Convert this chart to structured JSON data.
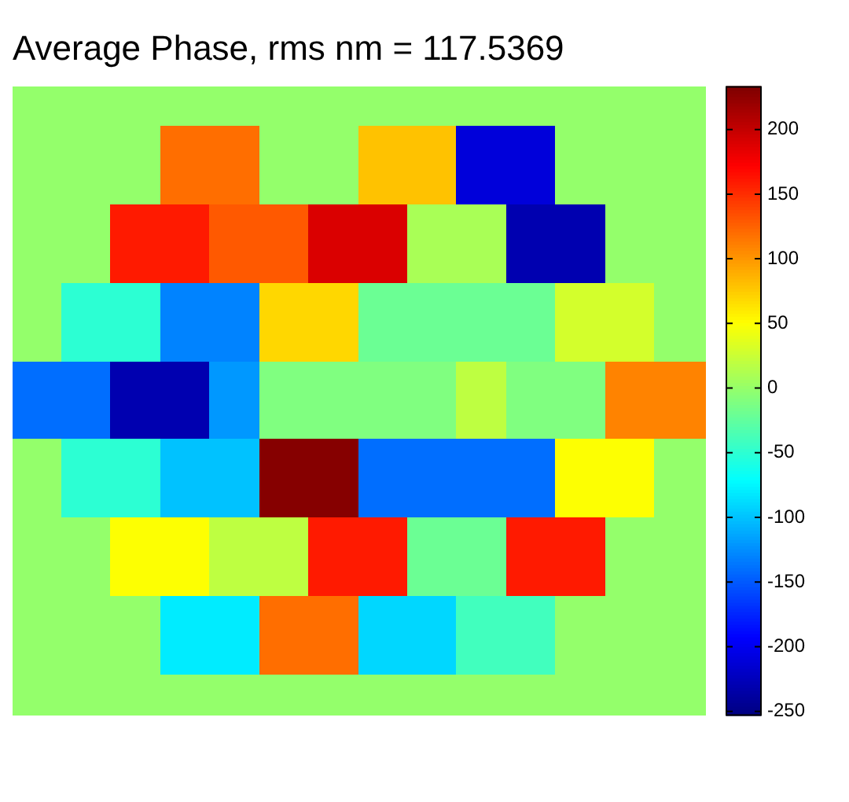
{
  "chart_data": {
    "type": "heatmap",
    "title": "Average Phase, rms nm = 117.5369",
    "categories": [
      null,
      null,
      null,
      null,
      null,
      null,
      null,
      null,
      null,
      null,
      null,
      null,
      null,
      null
    ],
    "y_categories": [
      null,
      null,
      null,
      null,
      null,
      null,
      null,
      null,
      null,
      null,
      null,
      null,
      null,
      null,
      null,
      null
    ],
    "cells": [
      [
        0,
        0,
        0,
        0,
        0,
        0,
        0,
        0,
        0,
        0,
        0,
        0,
        0,
        0
      ],
      [
        0,
        0,
        0,
        120,
        120,
        0,
        0,
        80,
        80,
        -210,
        -210,
        0,
        0,
        0
      ],
      [
        0,
        0,
        0,
        120,
        120,
        0,
        0,
        80,
        80,
        -210,
        -210,
        0,
        0,
        0
      ],
      [
        0,
        0,
        160,
        160,
        130,
        130,
        190,
        190,
        10,
        10,
        -230,
        -230,
        0,
        0
      ],
      [
        0,
        0,
        160,
        160,
        130,
        130,
        190,
        190,
        10,
        10,
        -230,
        -230,
        0,
        0
      ],
      [
        0,
        -50,
        -50,
        -130,
        -130,
        70,
        70,
        -20,
        -20,
        -20,
        -20,
        30,
        30,
        0
      ],
      [
        0,
        -50,
        -50,
        -130,
        -130,
        70,
        70,
        -20,
        -20,
        -20,
        -20,
        30,
        30,
        0
      ],
      [
        -140,
        -140,
        -230,
        -230,
        -120,
        -10,
        -10,
        -10,
        -10,
        20,
        -10,
        -10,
        110,
        110
      ],
      [
        -140,
        -140,
        -230,
        -230,
        -120,
        -10,
        -10,
        -10,
        -10,
        20,
        -10,
        -10,
        110,
        110
      ],
      [
        0,
        -50,
        -50,
        -100,
        -100,
        230,
        230,
        -140,
        -140,
        -140,
        -140,
        50,
        50,
        0
      ],
      [
        0,
        -50,
        -50,
        -100,
        -100,
        230,
        230,
        -140,
        -140,
        -140,
        -140,
        50,
        50,
        0
      ],
      [
        0,
        0,
        50,
        50,
        20,
        20,
        160,
        160,
        -20,
        -20,
        160,
        160,
        0,
        0
      ],
      [
        0,
        0,
        50,
        50,
        20,
        20,
        160,
        160,
        -20,
        -20,
        160,
        160,
        0,
        0
      ],
      [
        0,
        0,
        0,
        -80,
        -80,
        120,
        120,
        -90,
        -90,
        -40,
        -40,
        0,
        0,
        0
      ],
      [
        0,
        0,
        0,
        -80,
        -80,
        120,
        120,
        -90,
        -90,
        -40,
        -40,
        0,
        0,
        0
      ],
      [
        0,
        0,
        0,
        0,
        0,
        0,
        0,
        0,
        0,
        0,
        0,
        0,
        0,
        0
      ]
    ],
    "clim": [
      -253,
      233
    ],
    "cticks": [
      -250,
      -200,
      -150,
      -100,
      -50,
      0,
      50,
      100,
      150,
      200
    ]
  }
}
